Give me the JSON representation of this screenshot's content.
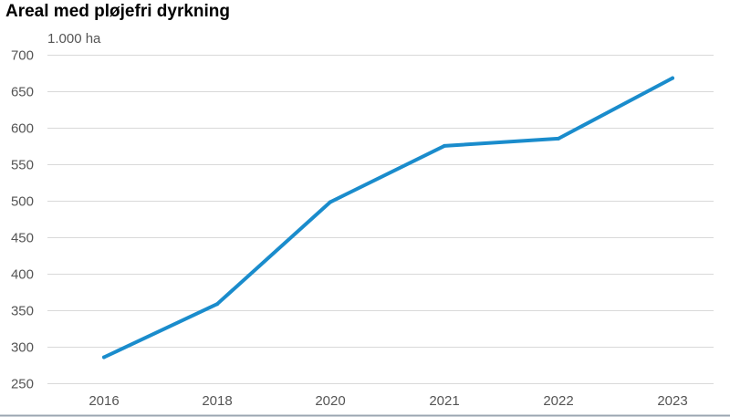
{
  "chart_data": {
    "type": "line",
    "title": "Areal med pløjefri dyrkning",
    "ylabel": "1.000 ha",
    "xlabel": "",
    "categories": [
      "2016",
      "2018",
      "2020",
      "2021",
      "2022",
      "2023"
    ],
    "series": [
      {
        "values": [
          285,
          358,
          498,
          575,
          585,
          668
        ],
        "color": "#1a8ccc"
      }
    ],
    "yticks": [
      250,
      300,
      350,
      400,
      450,
      500,
      550,
      600,
      650,
      700
    ],
    "ylim": [
      250,
      700
    ],
    "grid": true,
    "legend": "none"
  }
}
